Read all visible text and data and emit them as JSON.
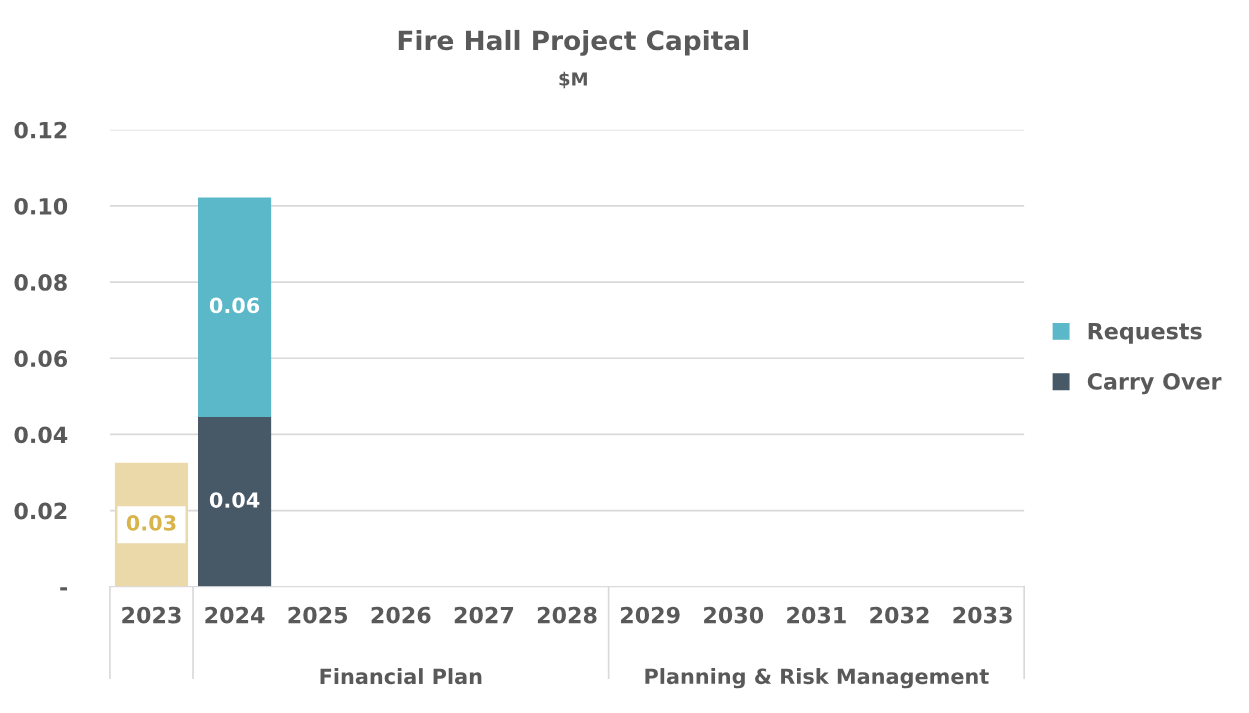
{
  "chart_data": {
    "type": "bar",
    "title": "Fire Hall Project Capital",
    "subtitle": "$M",
    "categories": [
      "2023",
      "2024",
      "2025",
      "2026",
      "2027",
      "2028",
      "2029",
      "2030",
      "2031",
      "2032",
      "2033"
    ],
    "stacked": true,
    "series": [
      {
        "name": "Carry Over",
        "color": "#475867",
        "values": [
          null,
          0.0446,
          null,
          null,
          null,
          null,
          null,
          null,
          null,
          null,
          null
        ],
        "value_labels": [
          null,
          "0.04",
          null,
          null,
          null,
          null,
          null,
          null,
          null,
          null,
          null
        ]
      },
      {
        "name": "Requests",
        "color": "#5bb8c9",
        "values": [
          null,
          0.0576,
          null,
          null,
          null,
          null,
          null,
          null,
          null,
          null,
          null
        ],
        "value_labels": [
          null,
          "0.06",
          null,
          null,
          null,
          null,
          null,
          null,
          null,
          null,
          null
        ]
      },
      {
        "color": "#ecd9aa",
        "values": [
          0.0326,
          null,
          null,
          null,
          null,
          null,
          null,
          null,
          null,
          null,
          null
        ],
        "value_labels": [
          "0.03",
          null,
          null,
          null,
          null,
          null,
          null,
          null,
          null,
          null,
          null
        ]
      }
    ],
    "ylim": [
      0,
      0.12
    ],
    "yticks": [
      {
        "value": 0,
        "label": "-"
      },
      0.02,
      0.04,
      0.06,
      0.08,
      {
        "value": 0.1,
        "label": "0.10"
      },
      0.12
    ],
    "grid": "y",
    "legend": "right",
    "annotations": [
      "Financial Plan",
      "Planning & Risk Management"
    ]
  }
}
